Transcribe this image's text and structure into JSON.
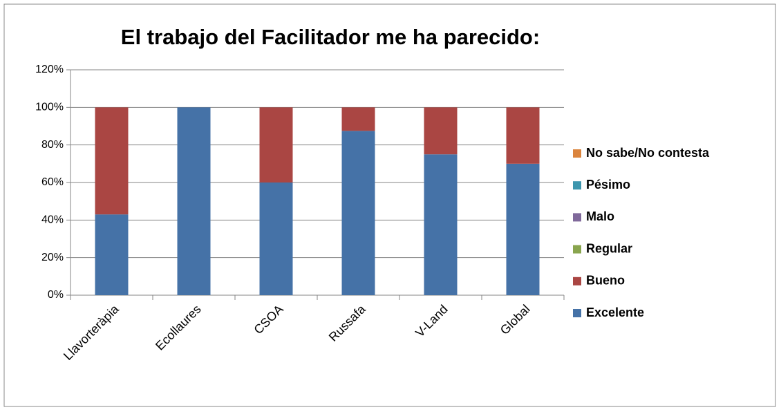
{
  "chart_data": {
    "type": "stacked_bar",
    "title": "El trabajo del Facilitador me ha parecido:",
    "categories": [
      "Llavorteràpia",
      "Ecollaures",
      "CSOA",
      "Russafa",
      "V-Land",
      "Global"
    ],
    "series": [
      {
        "name": "Excelente",
        "color": "#4572a7",
        "values": [
          43,
          100,
          60,
          87.5,
          75,
          70
        ]
      },
      {
        "name": "Bueno",
        "color": "#aa4643",
        "values": [
          57,
          0,
          40,
          12.5,
          25,
          30
        ]
      },
      {
        "name": "Regular",
        "color": "#89a54e",
        "values": [
          0,
          0,
          0,
          0,
          0,
          0
        ]
      },
      {
        "name": "Malo",
        "color": "#80699b",
        "values": [
          0,
          0,
          0,
          0,
          0,
          0
        ]
      },
      {
        "name": "Pésimo",
        "color": "#3d96ae",
        "values": [
          0,
          0,
          0,
          0,
          0,
          0
        ]
      },
      {
        "name": "No sabe/No contesta",
        "color": "#db843d",
        "values": [
          0,
          0,
          0,
          0,
          0,
          0
        ]
      }
    ],
    "ylim": [
      0,
      120
    ],
    "yticks": [
      {
        "value": 0,
        "label": "0%"
      },
      {
        "value": 20,
        "label": "20%"
      },
      {
        "value": 40,
        "label": "40%"
      },
      {
        "value": 60,
        "label": "60%"
      },
      {
        "value": 80,
        "label": "80%"
      },
      {
        "value": 100,
        "label": "100%"
      },
      {
        "value": 120,
        "label": "120%"
      }
    ],
    "grid": true,
    "legend": "right"
  }
}
